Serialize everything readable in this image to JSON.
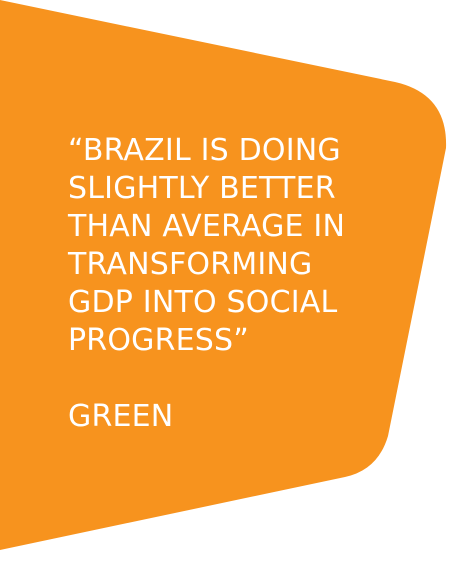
{
  "colors": {
    "background": "#ffffff",
    "panel": "#F7931E",
    "text": "#ffffff"
  },
  "quote": {
    "lines": [
      "“BRAZIL IS DOING",
      "SLIGHTLY BETTER",
      "THAN AVERAGE IN",
      "TRANSFORMING",
      "GDP INTO SOCIAL",
      "PROGRESS”"
    ],
    "attribution": "GREEN"
  }
}
